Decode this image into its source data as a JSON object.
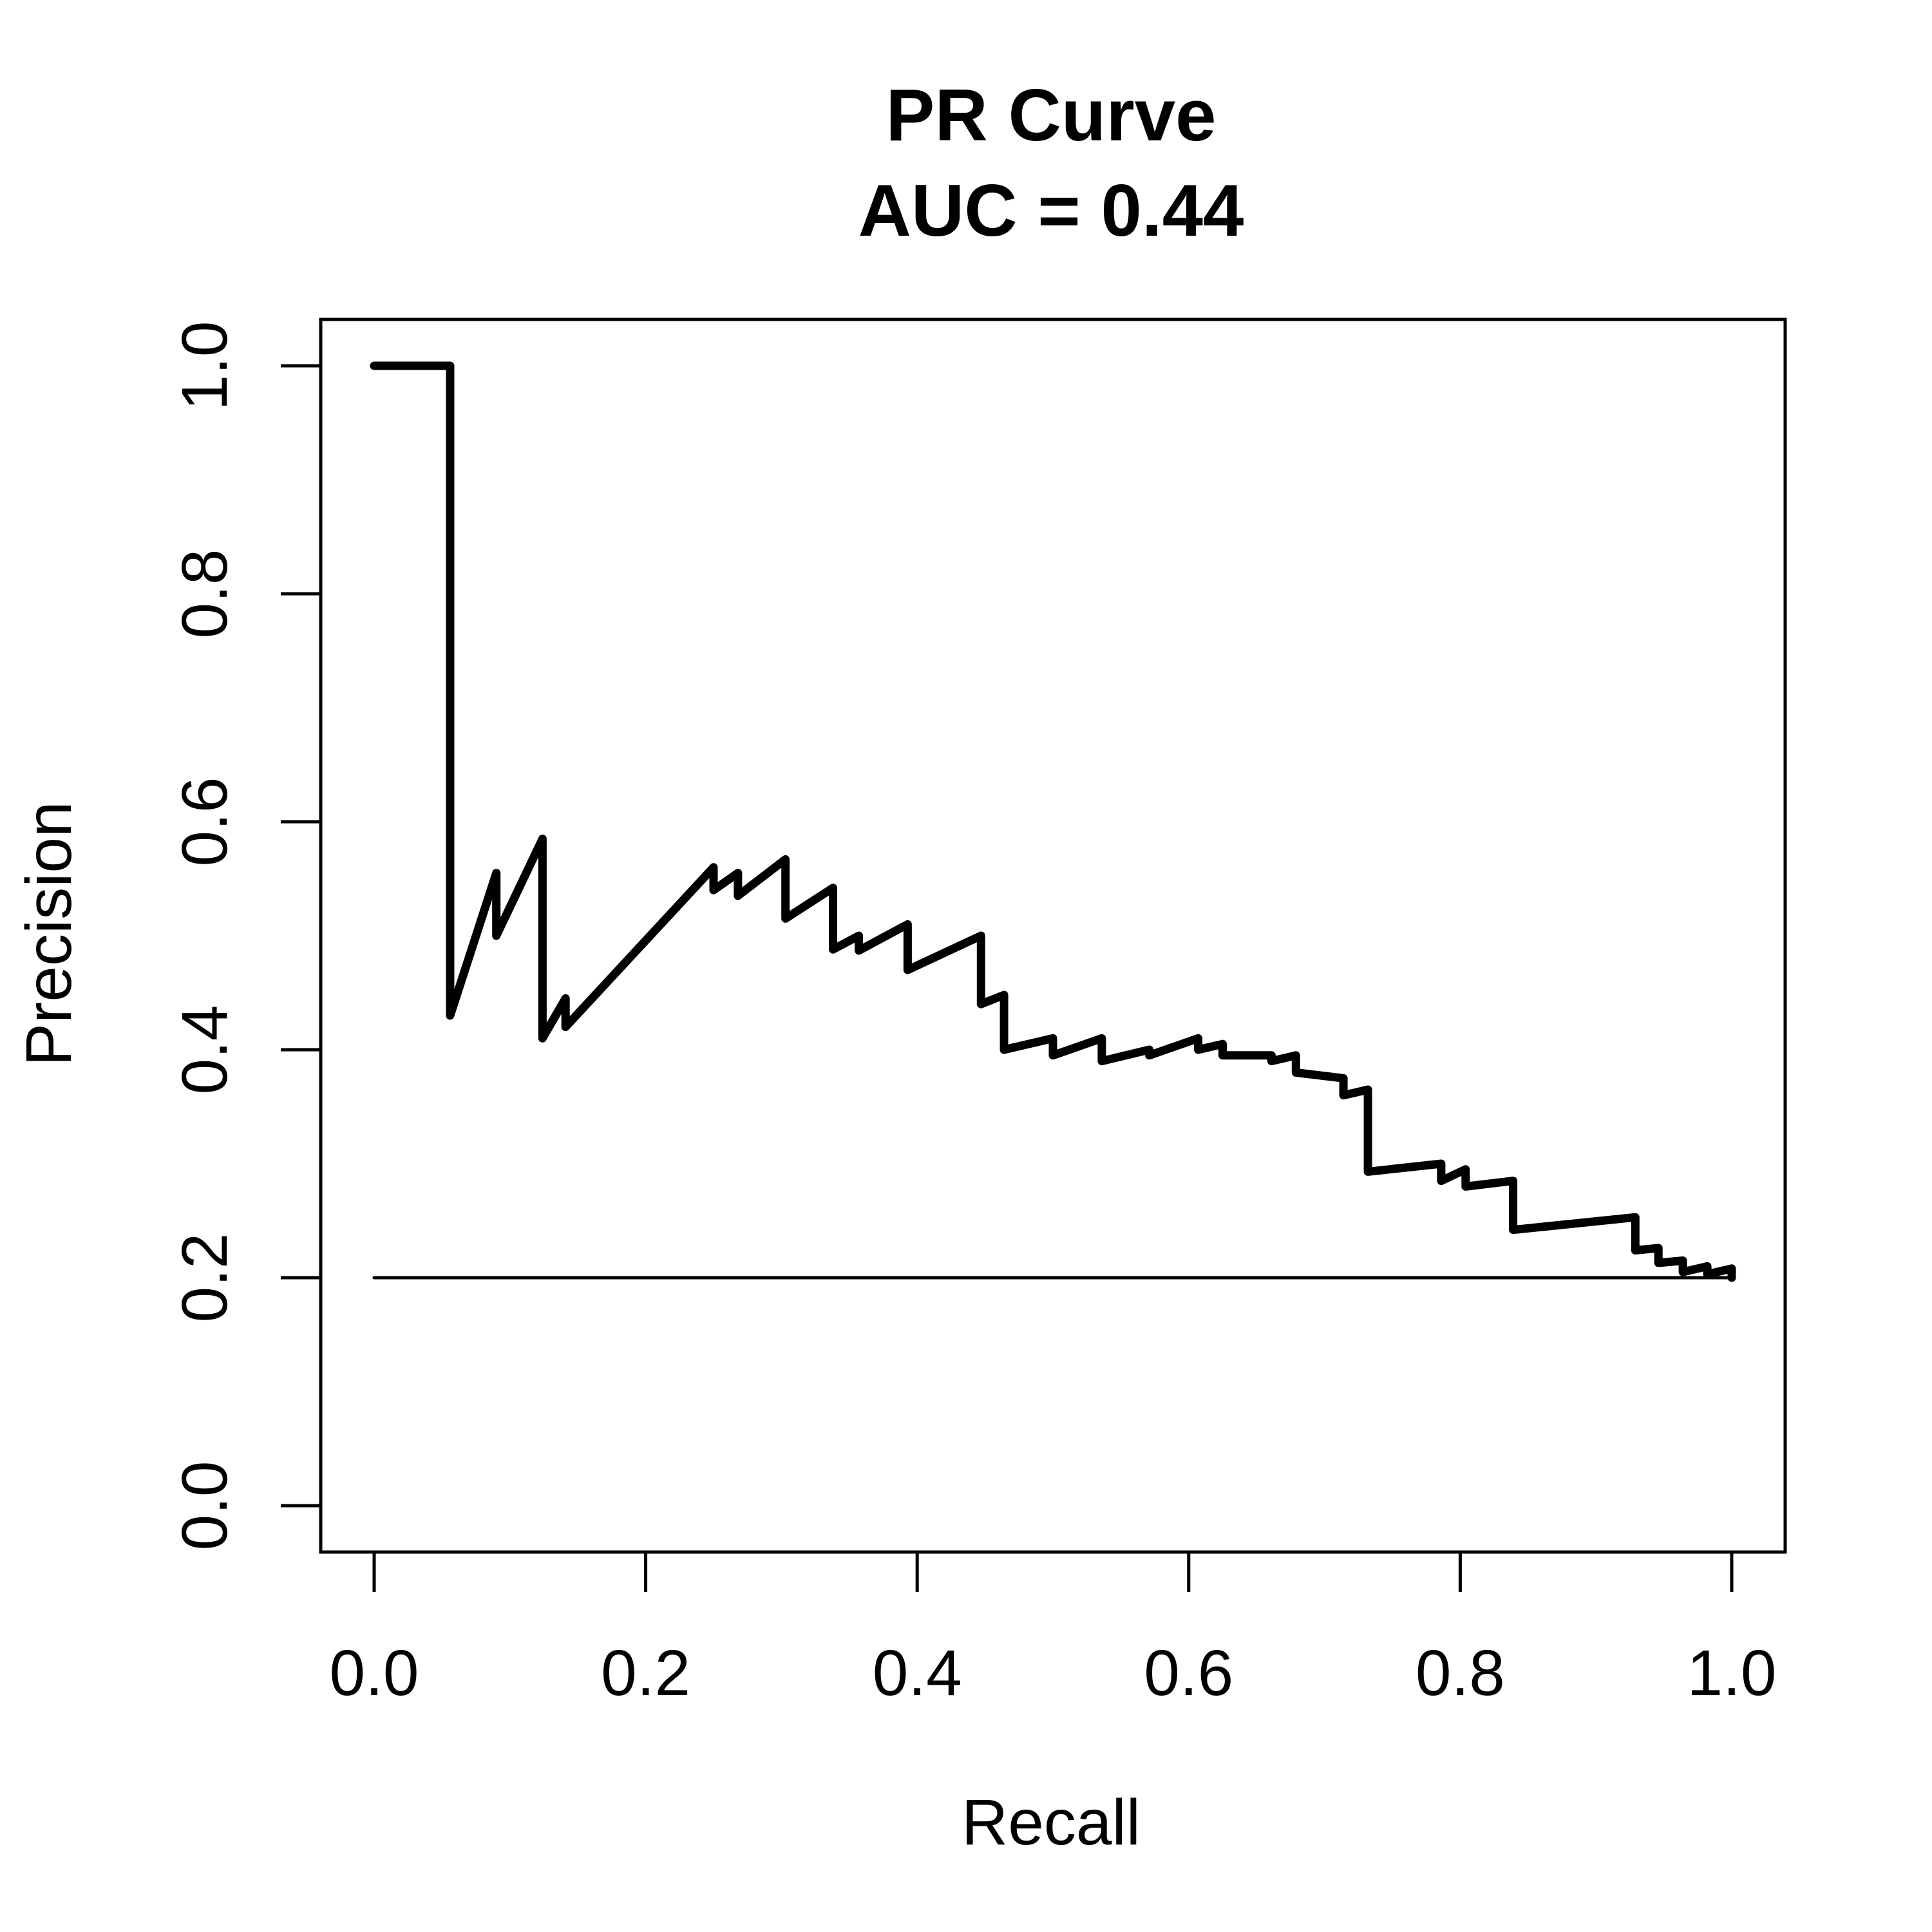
{
  "chart_data": {
    "type": "line",
    "title": "PR Curve",
    "subtitle": "AUC = 0.44",
    "xlabel": "Recall",
    "ylabel": "Precision",
    "xlim": [
      0.0,
      1.0
    ],
    "ylim": [
      0.0,
      1.0
    ],
    "xticks": [
      "0.0",
      "0.2",
      "0.4",
      "0.6",
      "0.8",
      "1.0"
    ],
    "yticks": [
      "0.0",
      "0.2",
      "0.4",
      "0.6",
      "0.8",
      "1.0"
    ],
    "grid": false,
    "legend": "none",
    "series": [
      {
        "x": [
          0.0,
          0.056,
          0.056,
          0.09,
          0.09,
          0.124,
          0.124,
          0.141,
          0.141,
          0.25,
          0.25,
          0.268,
          0.268,
          0.303,
          0.303,
          0.338,
          0.338,
          0.357,
          0.357,
          0.393,
          0.393,
          0.447,
          0.447,
          0.464,
          0.464,
          0.5,
          0.5,
          0.536,
          0.536,
          0.571,
          0.571,
          0.607,
          0.607,
          0.625,
          0.625,
          0.661,
          0.661,
          0.679,
          0.679,
          0.714,
          0.714,
          0.732,
          0.732,
          0.786,
          0.786,
          0.804,
          0.804,
          0.839,
          0.839,
          0.929,
          0.929,
          0.946,
          0.946,
          0.964,
          0.964,
          0.982,
          0.982,
          1.0,
          1.0
        ],
        "y": [
          1.0,
          1.0,
          0.43,
          0.555,
          0.5,
          0.585,
          0.41,
          0.445,
          0.42,
          0.56,
          0.54,
          0.555,
          0.535,
          0.567,
          0.515,
          0.542,
          0.488,
          0.5,
          0.487,
          0.51,
          0.47,
          0.5,
          0.44,
          0.448,
          0.4,
          0.41,
          0.395,
          0.41,
          0.39,
          0.4,
          0.395,
          0.41,
          0.4,
          0.405,
          0.395,
          0.395,
          0.39,
          0.395,
          0.38,
          0.375,
          0.36,
          0.365,
          0.293,
          0.3,
          0.285,
          0.295,
          0.28,
          0.285,
          0.242,
          0.253,
          0.224,
          0.226,
          0.213,
          0.215,
          0.205,
          0.21,
          0.203,
          0.208,
          0.2
        ]
      },
      {
        "x": [
          0.0,
          1.0
        ],
        "y": [
          0.2,
          0.2
        ]
      }
    ]
  }
}
